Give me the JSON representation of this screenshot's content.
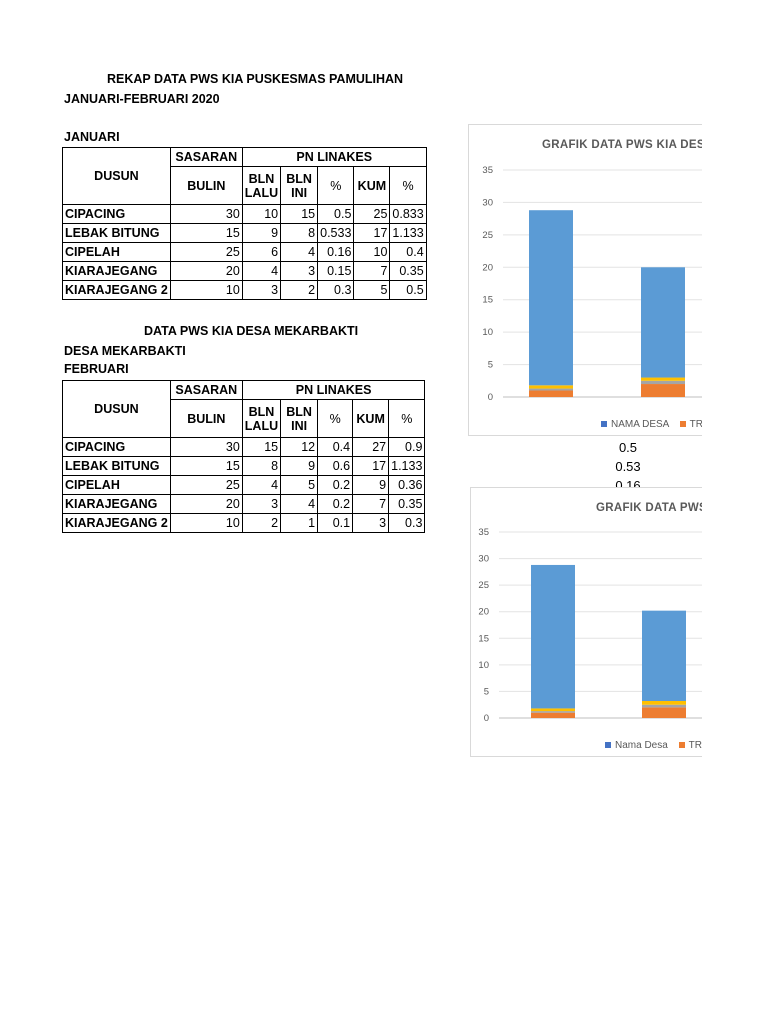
{
  "doc": {
    "title": "REKAP DATA PWS KIA PUSKESMAS PAMULIHAN",
    "period": "JANUARI-FEBRUARI 2020",
    "month1": "JANUARI",
    "section2_title": "DATA PWS KIA DESA MEKARBAKTI",
    "desa": "DESA MEKARBAKTI",
    "month2": "FEBRUARI"
  },
  "table_headers": {
    "dusun": "DUSUN",
    "sasaran": "SASARAN",
    "pn_linakes": "PN LINAKES",
    "bulin": "BULIN",
    "bln_lalu": "BLN LALU",
    "bln_ini": "BLN INI",
    "pct1": "%",
    "kum": "KUM",
    "pct2": "%"
  },
  "januari_rows": [
    {
      "dusun": "CIPACING",
      "bulin": "30",
      "bln_lalu": "10",
      "bln_ini": "15",
      "pct1": "0.5",
      "kum": "25",
      "pct2": "0.833"
    },
    {
      "dusun": "LEBAK BITUNG",
      "bulin": "15",
      "bln_lalu": "9",
      "bln_ini": "8",
      "pct1": "0.533",
      "kum": "17",
      "pct2": "1.133"
    },
    {
      "dusun": "CIPELAH",
      "bulin": "25",
      "bln_lalu": "6",
      "bln_ini": "4",
      "pct1": "0.16",
      "kum": "10",
      "pct2": "0.4"
    },
    {
      "dusun": "KIARAJEGANG",
      "bulin": "20",
      "bln_lalu": "4",
      "bln_ini": "3",
      "pct1": "0.15",
      "kum": "7",
      "pct2": "0.35"
    },
    {
      "dusun": "KIARAJEGANG 2",
      "bulin": "10",
      "bln_lalu": "3",
      "bln_ini": "2",
      "pct1": "0.3",
      "kum": "5",
      "pct2": "0.5"
    }
  ],
  "februari_rows": [
    {
      "dusun": "CIPACING",
      "bulin": "30",
      "bln_lalu": "15",
      "bln_ini": "12",
      "pct1": "0.4",
      "kum": "27",
      "pct2": "0.9"
    },
    {
      "dusun": "LEBAK BITUNG",
      "bulin": "15",
      "bln_lalu": "8",
      "bln_ini": "9",
      "pct1": "0.6",
      "kum": "17",
      "pct2": "1.133"
    },
    {
      "dusun": "CIPELAH",
      "bulin": "25",
      "bln_lalu": "4",
      "bln_ini": "5",
      "pct1": "0.2",
      "kum": "9",
      "pct2": "0.36"
    },
    {
      "dusun": "KIARAJEGANG",
      "bulin": "20",
      "bln_lalu": "3",
      "bln_ini": "4",
      "pct1": "0.2",
      "kum": "7",
      "pct2": "0.35"
    },
    {
      "dusun": "KIARAJEGANG 2",
      "bulin": "10",
      "bln_lalu": "2",
      "bln_ini": "1",
      "pct1": "0.1",
      "kum": "3",
      "pct2": "0.3"
    }
  ],
  "side_values": [
    "0.5",
    "0.53",
    "0.16"
  ],
  "colors": {
    "blue": "#5b9bd5",
    "orange": "#ed7d31",
    "yellow": "#ffc000",
    "gray": "#a5a5a5"
  },
  "chart_data": [
    {
      "type": "bar",
      "stacked": true,
      "title": "GRAFIK DATA PWS KIA DESA",
      "ylim": [
        0,
        35
      ],
      "yticks": [
        0,
        5,
        10,
        15,
        20,
        25,
        30,
        35
      ],
      "grid": true,
      "legend_position": "bottom",
      "series": [
        {
          "name": "",
          "color": "#ed7d31",
          "values": [
            1,
            2
          ]
        },
        {
          "name": "",
          "color": "#a5a5a5",
          "values": [
            0.3,
            0.5
          ]
        },
        {
          "name": "",
          "color": "#ffc000",
          "values": [
            0.5,
            0.5
          ]
        },
        {
          "name": "",
          "color": "#5b9bd5",
          "values": [
            27,
            17
          ]
        }
      ],
      "legend": [
        {
          "label": "NAMA DESA",
          "color": "#4472c4"
        },
        {
          "label": "TRE",
          "color": "#ed7d31"
        }
      ]
    },
    {
      "type": "bar",
      "stacked": true,
      "title": "GRAFIK DATA PWS",
      "ylim": [
        0,
        35
      ],
      "yticks": [
        0,
        5,
        10,
        15,
        20,
        25,
        30,
        35
      ],
      "grid": true,
      "legend_position": "bottom",
      "series": [
        {
          "name": "",
          "color": "#ed7d31",
          "values": [
            1,
            2
          ]
        },
        {
          "name": "",
          "color": "#a5a5a5",
          "values": [
            0.3,
            0.5
          ]
        },
        {
          "name": "",
          "color": "#ffc000",
          "values": [
            0.5,
            0.7
          ]
        },
        {
          "name": "",
          "color": "#5b9bd5",
          "values": [
            27,
            17
          ]
        }
      ],
      "legend": [
        {
          "label": "Nama Desa",
          "color": "#4472c4"
        },
        {
          "label": "TRE",
          "color": "#ed7d31"
        }
      ]
    }
  ]
}
